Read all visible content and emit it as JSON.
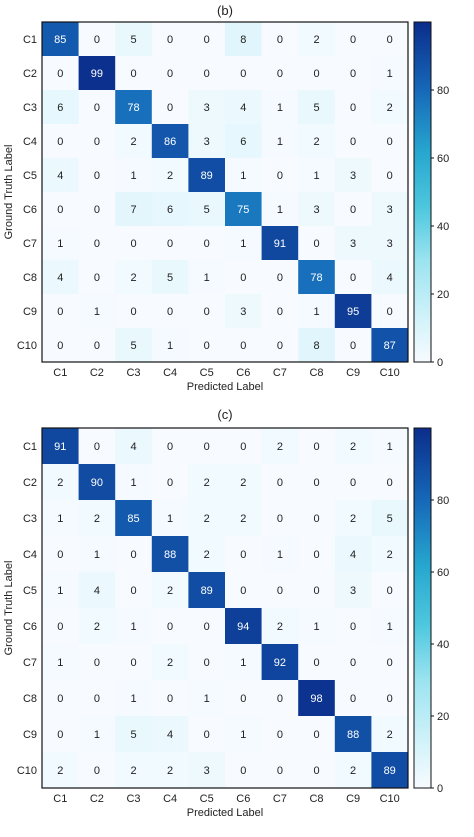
{
  "chart_data": [
    {
      "type": "heatmap",
      "title": "(b)",
      "xlabel": "Predicted Label",
      "ylabel": "Ground Truth Label",
      "x_categories": [
        "C1",
        "C2",
        "C3",
        "C4",
        "C5",
        "C6",
        "C7",
        "C8",
        "C9",
        "C10"
      ],
      "y_categories": [
        "C1",
        "C2",
        "C3",
        "C4",
        "C5",
        "C6",
        "C7",
        "C8",
        "C9",
        "C10"
      ],
      "values": [
        [
          85,
          0,
          5,
          0,
          0,
          8,
          0,
          2,
          0,
          0
        ],
        [
          0,
          99,
          0,
          0,
          0,
          0,
          0,
          0,
          0,
          1
        ],
        [
          6,
          0,
          78,
          0,
          3,
          4,
          1,
          5,
          0,
          2
        ],
        [
          0,
          0,
          2,
          86,
          3,
          6,
          1,
          2,
          0,
          0
        ],
        [
          4,
          0,
          1,
          2,
          89,
          1,
          0,
          1,
          3,
          0
        ],
        [
          0,
          0,
          7,
          6,
          5,
          75,
          1,
          3,
          0,
          3
        ],
        [
          1,
          0,
          0,
          0,
          0,
          1,
          91,
          0,
          3,
          3
        ],
        [
          4,
          0,
          2,
          5,
          1,
          0,
          0,
          78,
          0,
          4
        ],
        [
          0,
          1,
          0,
          0,
          0,
          3,
          0,
          1,
          95,
          0
        ],
        [
          0,
          0,
          5,
          1,
          0,
          0,
          0,
          8,
          0,
          87
        ]
      ],
      "colorbar": {
        "range": [
          0,
          100
        ],
        "ticks": [
          0,
          20,
          40,
          60,
          80
        ]
      }
    },
    {
      "type": "heatmap",
      "title": "(c)",
      "xlabel": "Predicted Label",
      "ylabel": "Ground Truth Label",
      "x_categories": [
        "C1",
        "C2",
        "C3",
        "C4",
        "C5",
        "C6",
        "C7",
        "C8",
        "C9",
        "C10"
      ],
      "y_categories": [
        "C1",
        "C2",
        "C3",
        "C4",
        "C5",
        "C6",
        "C7",
        "C8",
        "C9",
        "C10"
      ],
      "values": [
        [
          91,
          0,
          4,
          0,
          0,
          0,
          2,
          0,
          2,
          1
        ],
        [
          2,
          90,
          1,
          0,
          2,
          2,
          0,
          0,
          0,
          0
        ],
        [
          1,
          2,
          85,
          1,
          2,
          2,
          0,
          0,
          2,
          5
        ],
        [
          0,
          1,
          0,
          88,
          2,
          0,
          1,
          0,
          4,
          2
        ],
        [
          1,
          4,
          0,
          2,
          89,
          0,
          0,
          0,
          3,
          0
        ],
        [
          0,
          2,
          1,
          0,
          0,
          94,
          2,
          1,
          0,
          1
        ],
        [
          1,
          0,
          0,
          2,
          0,
          1,
          92,
          0,
          0,
          0
        ],
        [
          0,
          0,
          1,
          0,
          1,
          0,
          0,
          98,
          0,
          0
        ],
        [
          0,
          1,
          5,
          4,
          0,
          1,
          0,
          0,
          88,
          2
        ],
        [
          2,
          0,
          2,
          2,
          3,
          0,
          0,
          0,
          2,
          89
        ]
      ],
      "colorbar": {
        "range": [
          0,
          100
        ],
        "ticks": [
          0,
          20,
          40,
          60,
          80
        ]
      }
    }
  ]
}
